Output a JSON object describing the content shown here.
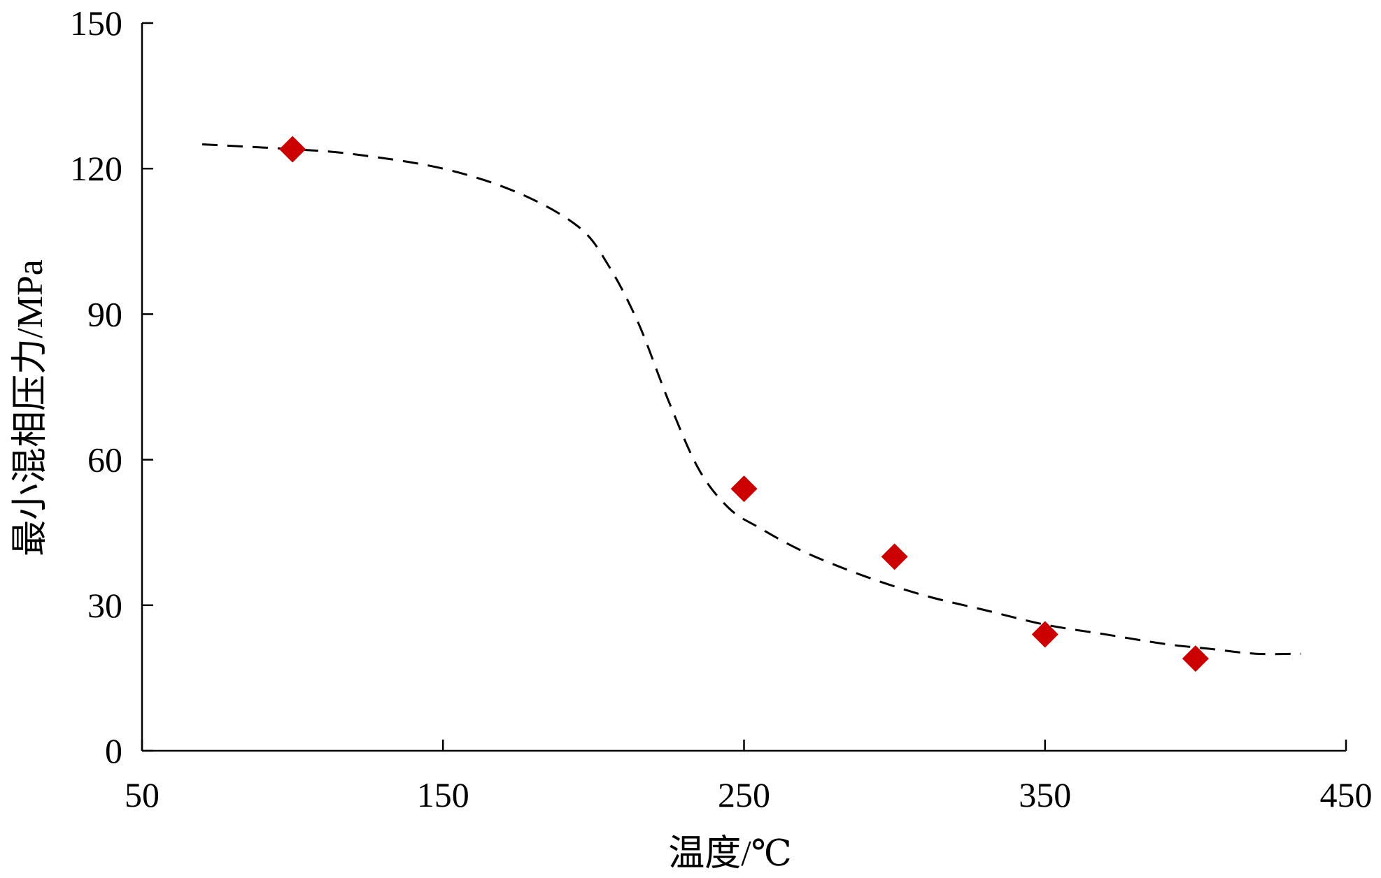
{
  "chart_data": {
    "type": "scatter",
    "xlabel": "温度/℃",
    "ylabel": "最小混相压力/MPa",
    "xlim": [
      50,
      450
    ],
    "ylim": [
      0,
      150
    ],
    "xticks": [
      50,
      150,
      250,
      350,
      450
    ],
    "yticks": [
      0,
      30,
      60,
      90,
      120,
      150
    ],
    "grid": false,
    "series": [
      {
        "kind": "points",
        "marker": "diamond",
        "color": "#cc0000",
        "x": [
          100,
          250,
          300,
          350,
          400
        ],
        "y": [
          124,
          54,
          40,
          24,
          19
        ]
      },
      {
        "kind": "trend-line",
        "style": "dashed",
        "color": "#000000",
        "x": [
          70,
          100,
          120,
          150,
          175,
          195,
          205,
          215,
          225,
          235,
          245,
          255,
          270,
          290,
          310,
          330,
          350,
          370,
          390,
          405,
          420,
          435
        ],
        "y": [
          125,
          124,
          123,
          120,
          115,
          108,
          100,
          88,
          72,
          58,
          50,
          46,
          41,
          36,
          32,
          29,
          26,
          24,
          22,
          21,
          20,
          20
        ]
      }
    ]
  }
}
